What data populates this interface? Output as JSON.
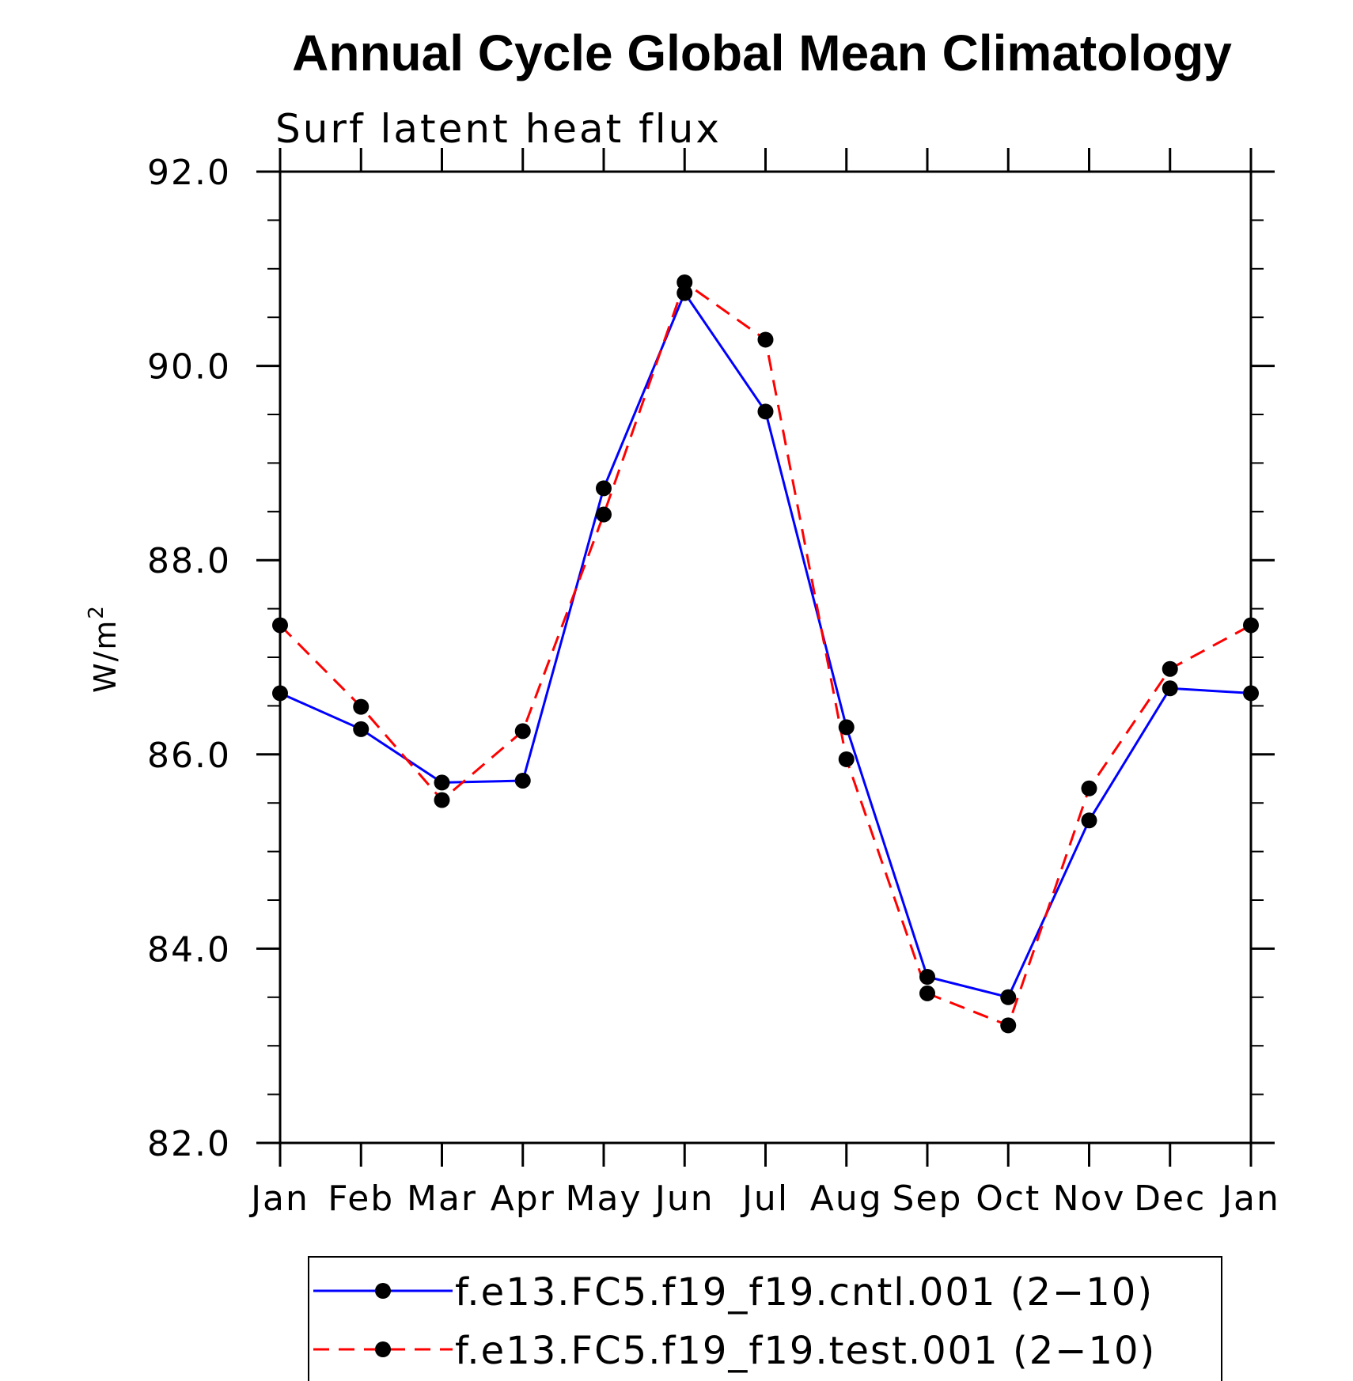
{
  "title": "Annual Cycle Global Mean Climatology",
  "subtitle": "Surf latent heat flux",
  "ylabel": "W/m",
  "ylabel_superscript": "2",
  "chart_data": {
    "type": "line",
    "title": "Annual Cycle Global Mean Climatology",
    "subtitle": "Surf latent heat flux",
    "ylabel": "W/m2",
    "xlabel": "",
    "categories": [
      "Jan",
      "Feb",
      "Mar",
      "Apr",
      "May",
      "Jun",
      "Jul",
      "Aug",
      "Sep",
      "Oct",
      "Nov",
      "Dec",
      "Jan"
    ],
    "ylim": [
      82.0,
      92.0
    ],
    "y_ticks": [
      "82.0",
      "84.0",
      "86.0",
      "88.0",
      "90.0",
      "92.0"
    ],
    "y_minor_step": 0.5,
    "grid": false,
    "legend_position": "bottom",
    "series": [
      {
        "name": "f.e13.FC5.f19_f19.cntl.001 (2−10)",
        "color": "#0000ff",
        "line_style": "solid",
        "marker": "filled-circle",
        "values": [
          86.63,
          86.26,
          85.71,
          85.73,
          88.74,
          90.75,
          89.53,
          86.28,
          83.71,
          83.5,
          85.32,
          86.68,
          86.63
        ]
      },
      {
        "name": "f.e13.FC5.f19_f19.test.001 (2−10)",
        "color": "#ff0000",
        "line_style": "dashed",
        "marker": "filled-circle",
        "values": [
          87.33,
          86.49,
          85.53,
          86.24,
          88.47,
          90.86,
          90.27,
          85.95,
          83.54,
          83.21,
          85.65,
          86.88,
          87.33
        ]
      }
    ]
  }
}
